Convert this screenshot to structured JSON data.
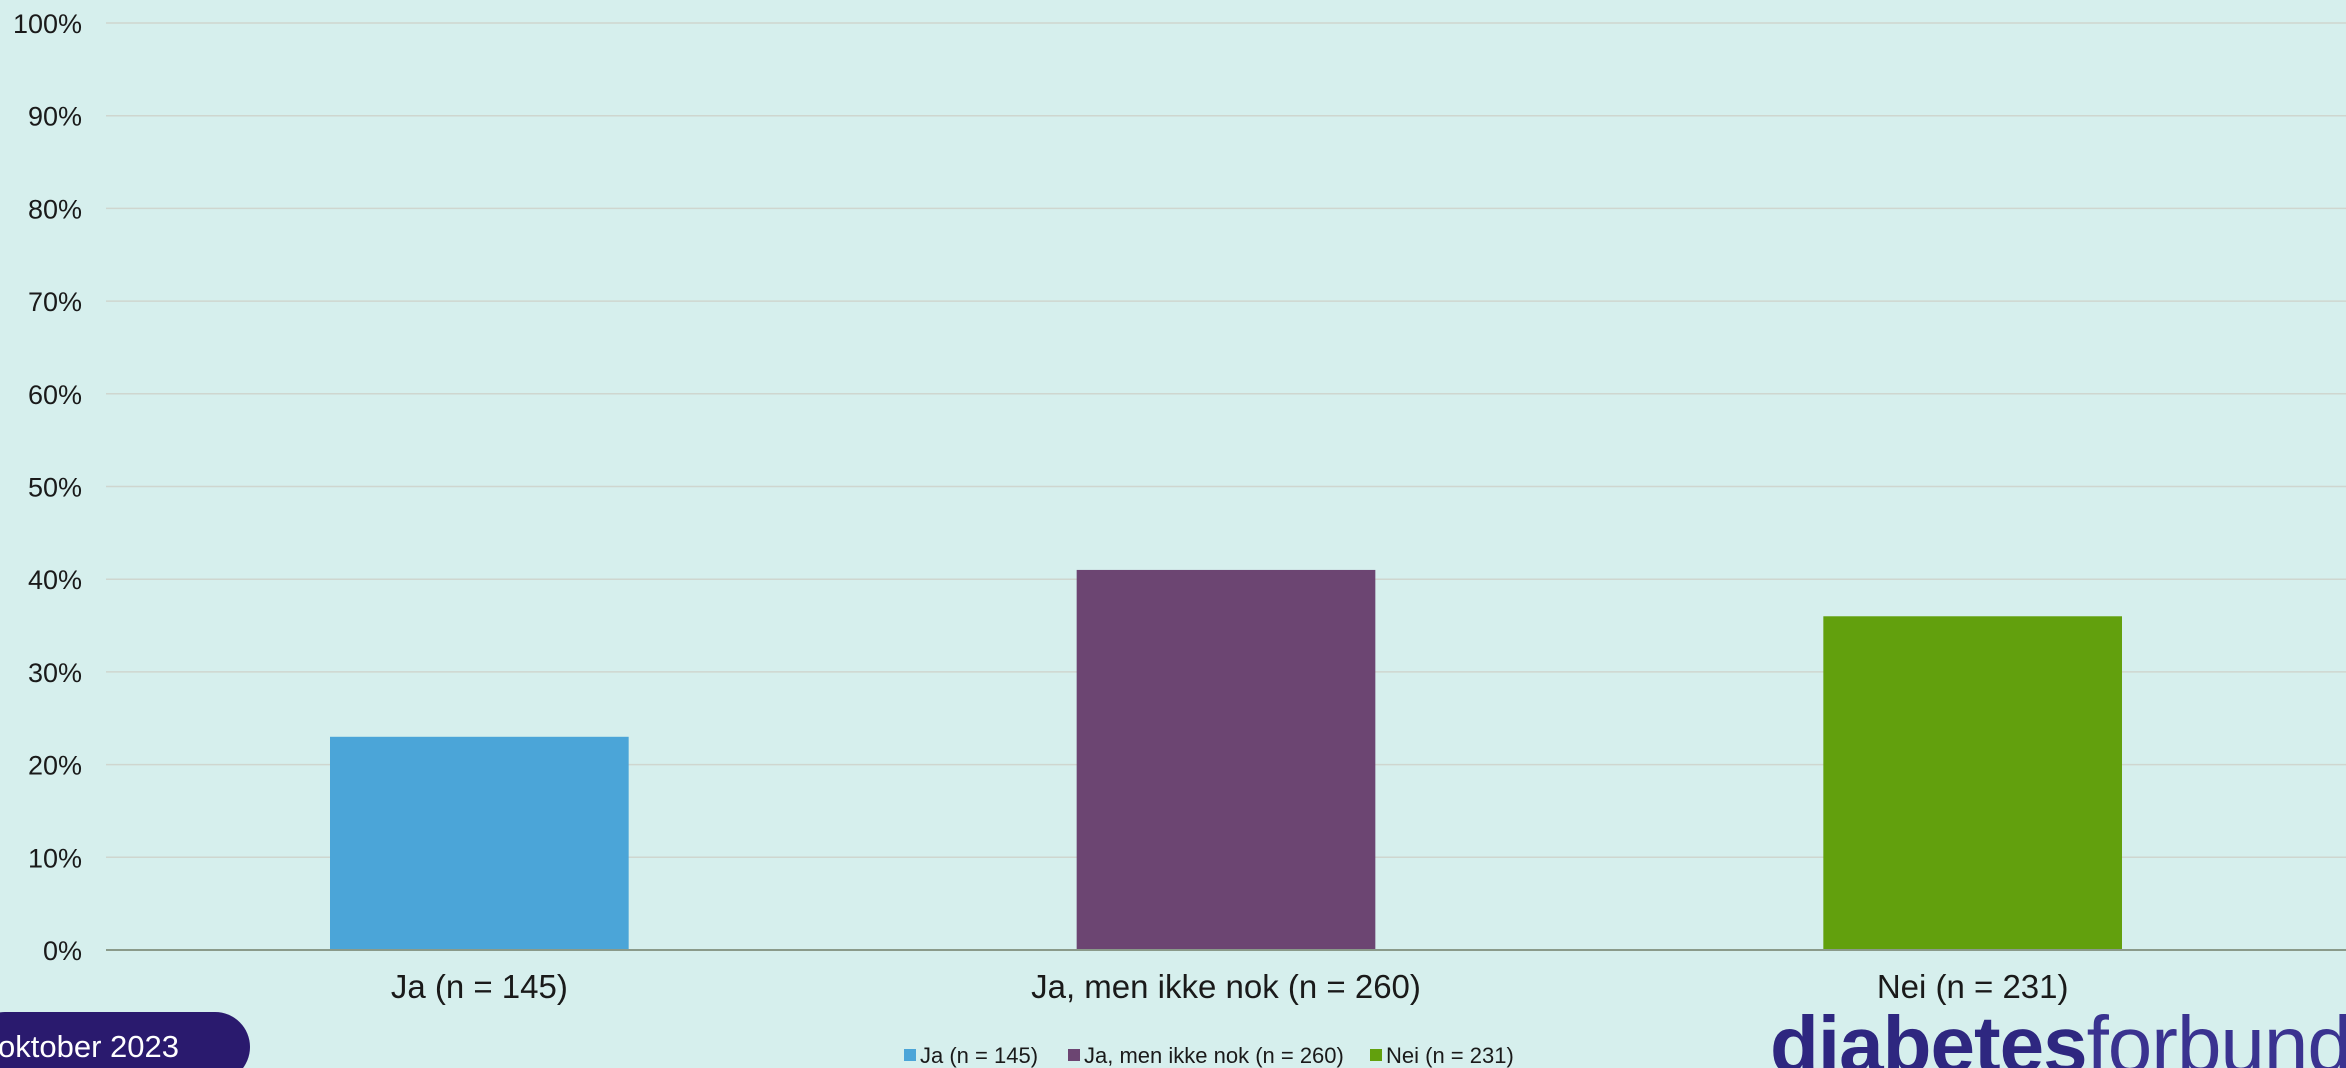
{
  "chart_data": {
    "type": "bar",
    "categories": [
      "Ja (n = 145)",
      "Ja, men ikke nok (n = 260)",
      "Nei (n = 231)"
    ],
    "values": [
      23,
      41,
      36
    ],
    "colors": [
      "#4ba5d8",
      "#6c4572",
      "#62a00d"
    ],
    "ylim": [
      0,
      100
    ],
    "yticks": [
      "0%",
      "10%",
      "20%",
      "30%",
      "40%",
      "50%",
      "60%",
      "70%",
      "80%",
      "90%",
      "100%"
    ],
    "grid": true,
    "legend": {
      "position": "bottom",
      "entries": [
        "Ja (n = 145)",
        "Ja, men ikke nok (n = 260)",
        "Nei (n = 231)"
      ]
    },
    "title": "",
    "xlabel": "",
    "ylabel": ""
  },
  "footer": {
    "date_label": "oktober 2023",
    "logo_bold": "diabetes",
    "logo_light": "forbundet"
  }
}
